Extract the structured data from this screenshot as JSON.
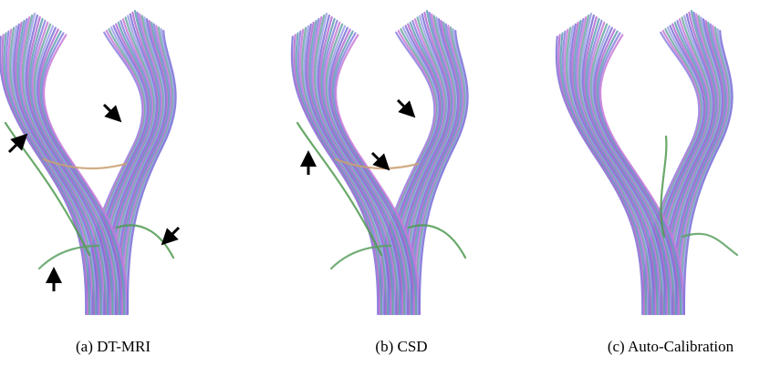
{
  "figures": [
    {
      "caption": "(a) DT-MRI"
    },
    {
      "caption": "(b) CSD"
    },
    {
      "caption": "(c) Auto-Calibration"
    }
  ]
}
